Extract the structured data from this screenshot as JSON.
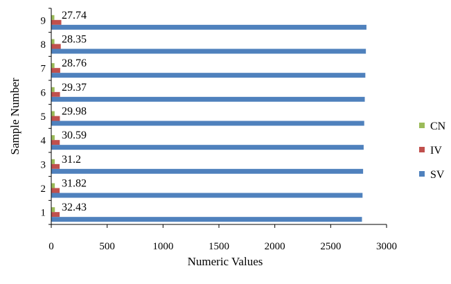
{
  "chart_data": {
    "type": "bar",
    "orientation": "horizontal",
    "categories": [
      "1",
      "2",
      "3",
      "4",
      "5",
      "6",
      "7",
      "8",
      "9"
    ],
    "series": [
      {
        "name": "SV",
        "color": "#4f81bd",
        "values": [
          2780,
          2785,
          2790,
          2795,
          2800,
          2805,
          2810,
          2815,
          2820
        ]
      },
      {
        "name": "IV",
        "color": "#c0504d",
        "values": [
          75,
          75,
          75,
          76,
          77,
          78,
          80,
          85,
          90
        ]
      },
      {
        "name": "CN",
        "color": "#9bbb59",
        "values": [
          32.43,
          31.82,
          31.2,
          30.59,
          29.98,
          29.37,
          28.76,
          28.35,
          27.74
        ]
      }
    ],
    "data_labels": [
      "32.43",
      "31.82",
      "31.2",
      "30.59",
      "29.98",
      "29.37",
      "28.76",
      "28.35",
      "27.74"
    ],
    "xlabel": "Numeric Values",
    "ylabel": "Sample Number",
    "xlim": [
      0,
      3000
    ],
    "xticks": [
      "0",
      "500",
      "1000",
      "1500",
      "2000",
      "2500",
      "3000"
    ],
    "grid": false,
    "legend": {
      "position": "right",
      "order": [
        "CN",
        "IV",
        "SV"
      ]
    }
  }
}
